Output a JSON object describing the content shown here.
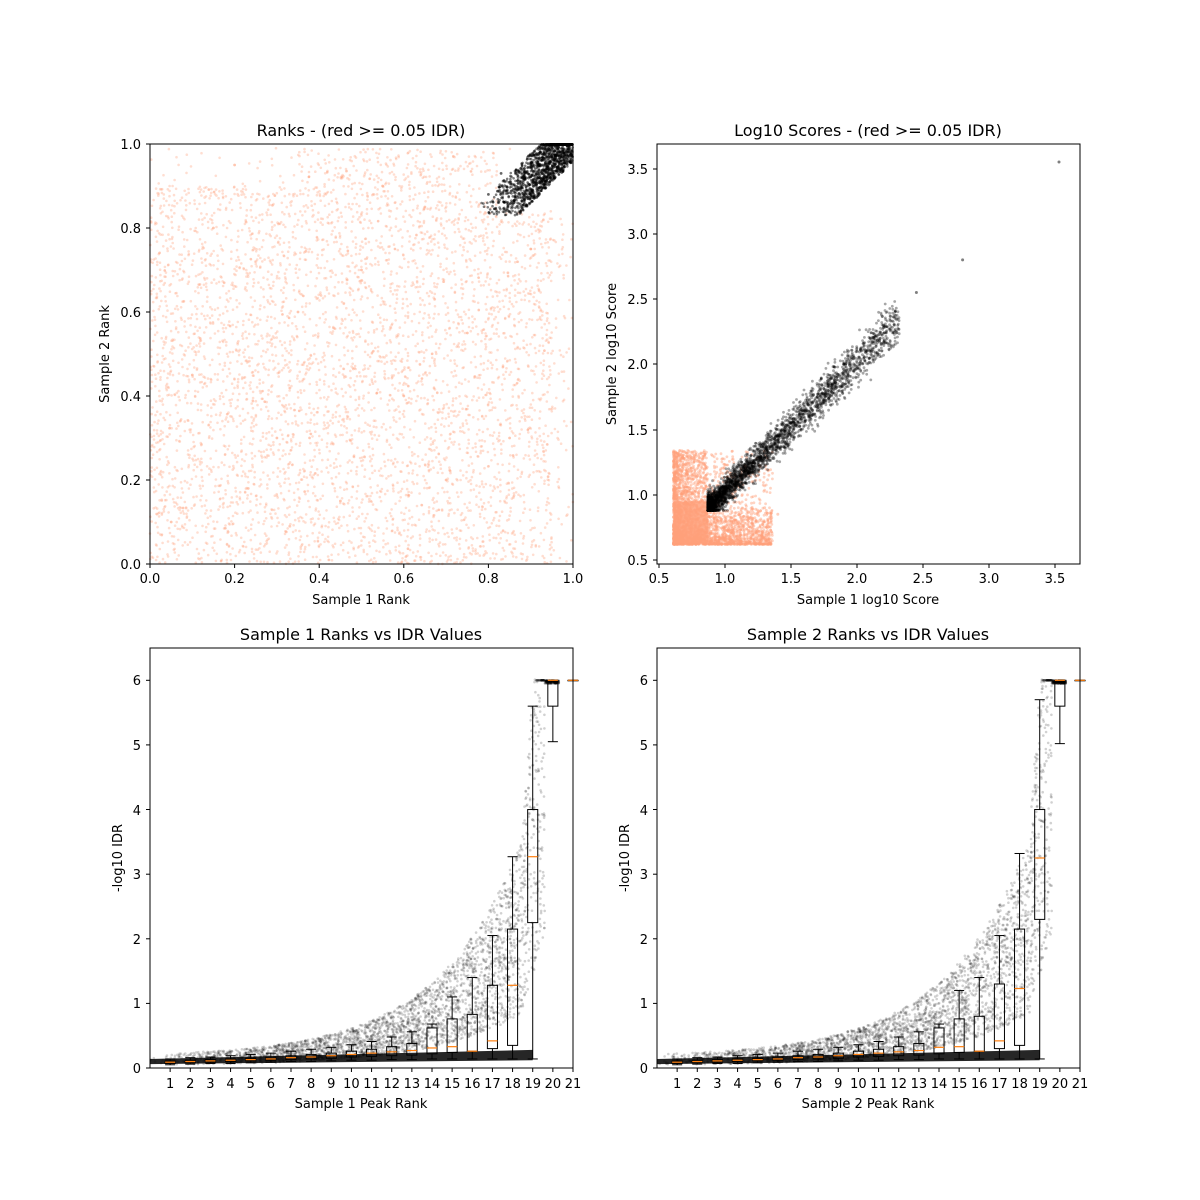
{
  "chart_data": [
    {
      "type": "scatter",
      "title": "Ranks - (red >= 0.05 IDR)",
      "xlabel": "Sample 1 Rank",
      "ylabel": "Sample 2 Rank",
      "xlim": [
        0,
        1
      ],
      "ylim": [
        0,
        1
      ],
      "xticks": [
        "0.0",
        "0.2",
        "0.4",
        "0.6",
        "0.8",
        "1.0"
      ],
      "yticks": [
        "0.0",
        "0.2",
        "0.4",
        "0.6",
        "0.8",
        "1.0"
      ],
      "grid": false,
      "colors": {
        "low_idr": "#000000",
        "high_idr": "#ffa07a"
      },
      "series": [
        {
          "color": "#ffa07a",
          "points": [
            [
              0.05,
              0.1
            ],
            [
              0.1,
              0.45
            ],
            [
              0.15,
              0.8
            ],
            [
              0.3,
              0.3
            ],
            [
              0.35,
              0.6
            ],
            [
              0.45,
              0.15
            ],
            [
              0.5,
              0.7
            ],
            [
              0.6,
              0.4
            ],
            [
              0.65,
              0.85
            ],
            [
              0.7,
              0.2
            ],
            [
              0.75,
              0.55
            ],
            [
              0.85,
              0.3
            ],
            [
              0.9,
              0.75
            ],
            [
              0.2,
              0.95
            ],
            [
              0.55,
              0.9
            ]
          ]
        },
        {
          "color": "#000000",
          "points": [
            [
              0.8,
              0.88
            ],
            [
              0.83,
              0.93
            ],
            [
              0.86,
              0.86
            ],
            [
              0.88,
              0.9
            ],
            [
              0.9,
              0.95
            ],
            [
              0.92,
              0.92
            ],
            [
              0.95,
              0.97
            ],
            [
              0.97,
              0.98
            ],
            [
              0.99,
              0.995
            ]
          ]
        }
      ]
    },
    {
      "type": "scatter",
      "title": "Log10 Scores - (red >= 0.05 IDR)",
      "xlabel": "Sample 1 log10 Score",
      "ylabel": "Sample 2 log10 Score",
      "xlim": [
        0.5,
        3.7
      ],
      "ylim": [
        0.5,
        3.7
      ],
      "xticks": [
        "0.5",
        "1.0",
        "1.5",
        "2.0",
        "2.5",
        "3.0",
        "3.5"
      ],
      "yticks": [
        "0.5",
        "1.0",
        "1.5",
        "2.0",
        "2.5",
        "3.0",
        "3.5"
      ],
      "grid": false,
      "series": [
        {
          "color": "#ffa07a",
          "points": [
            [
              0.62,
              0.63
            ],
            [
              0.65,
              0.8
            ],
            [
              0.7,
              0.95
            ],
            [
              0.75,
              1.15
            ],
            [
              0.8,
              0.7
            ],
            [
              0.9,
              0.65
            ],
            [
              1.0,
              0.68
            ],
            [
              1.1,
              0.75
            ],
            [
              1.2,
              0.85
            ],
            [
              0.68,
              1.25
            ],
            [
              1.3,
              0.9
            ],
            [
              1.4,
              0.85
            ]
          ]
        },
        {
          "color": "#000000",
          "points": [
            [
              0.88,
              0.9
            ],
            [
              1.0,
              1.0
            ],
            [
              1.1,
              1.1
            ],
            [
              1.2,
              1.2
            ],
            [
              1.3,
              1.35
            ],
            [
              1.4,
              1.45
            ],
            [
              1.5,
              1.55
            ],
            [
              1.6,
              1.65
            ],
            [
              1.7,
              1.75
            ],
            [
              1.8,
              1.85
            ],
            [
              1.9,
              2.0
            ],
            [
              2.0,
              2.1
            ],
            [
              2.1,
              2.2
            ],
            [
              2.2,
              2.3
            ],
            [
              2.45,
              2.55
            ],
            [
              2.8,
              2.8
            ],
            [
              3.53,
              3.55
            ]
          ]
        }
      ]
    },
    {
      "type": "box",
      "title": "Sample 1 Ranks vs IDR Values",
      "xlabel": "Sample 1 Peak Rank",
      "ylabel": "-log10 IDR",
      "ylim": [
        0,
        6.5
      ],
      "categories": [
        "1",
        "2",
        "3",
        "4",
        "5",
        "6",
        "7",
        "8",
        "9",
        "10",
        "11",
        "12",
        "13",
        "14",
        "15",
        "16",
        "17",
        "18",
        "19",
        "20",
        "21"
      ],
      "yticks": [
        "0",
        "1",
        "2",
        "3",
        "4",
        "5",
        "6"
      ],
      "grid": false,
      "boxes": [
        {
          "whislo": 0.05,
          "q1": 0.07,
          "med": 0.09,
          "q3": 0.11,
          "whishi": 0.14
        },
        {
          "whislo": 0.06,
          "q1": 0.08,
          "med": 0.1,
          "q3": 0.12,
          "whishi": 0.16
        },
        {
          "whislo": 0.07,
          "q1": 0.09,
          "med": 0.11,
          "q3": 0.13,
          "whishi": 0.17
        },
        {
          "whislo": 0.07,
          "q1": 0.1,
          "med": 0.12,
          "q3": 0.14,
          "whishi": 0.19
        },
        {
          "whislo": 0.08,
          "q1": 0.11,
          "med": 0.13,
          "q3": 0.15,
          "whishi": 0.21
        },
        {
          "whislo": 0.09,
          "q1": 0.12,
          "med": 0.14,
          "q3": 0.17,
          "whishi": 0.23
        },
        {
          "whislo": 0.1,
          "q1": 0.13,
          "med": 0.16,
          "q3": 0.19,
          "whishi": 0.26
        },
        {
          "whislo": 0.1,
          "q1": 0.14,
          "med": 0.17,
          "q3": 0.21,
          "whishi": 0.29
        },
        {
          "whislo": 0.11,
          "q1": 0.15,
          "med": 0.19,
          "q3": 0.23,
          "whishi": 0.32
        },
        {
          "whislo": 0.12,
          "q1": 0.17,
          "med": 0.21,
          "q3": 0.26,
          "whishi": 0.36
        },
        {
          "whislo": 0.12,
          "q1": 0.18,
          "med": 0.23,
          "q3": 0.29,
          "whishi": 0.41
        },
        {
          "whislo": 0.13,
          "q1": 0.19,
          "med": 0.25,
          "q3": 0.33,
          "whishi": 0.48
        },
        {
          "whislo": 0.13,
          "q1": 0.2,
          "med": 0.27,
          "q3": 0.38,
          "whishi": 0.56
        },
        {
          "whislo": 0.14,
          "q1": 0.22,
          "med": 0.31,
          "q3": 0.62,
          "whishi": 0.68
        },
        {
          "whislo": 0.14,
          "q1": 0.24,
          "med": 0.33,
          "q3": 0.76,
          "whishi": 1.1
        },
        {
          "whislo": 0.14,
          "q1": 0.26,
          "med": 0.26,
          "q3": 0.83,
          "whishi": 1.4
        },
        {
          "whislo": 0.14,
          "q1": 0.3,
          "med": 0.42,
          "q3": 1.28,
          "whishi": 2.05
        },
        {
          "whislo": 0.14,
          "q1": 0.35,
          "med": 1.28,
          "q3": 2.15,
          "whishi": 3.27
        },
        {
          "whislo": 0.14,
          "q1": 2.25,
          "med": 3.27,
          "q3": 4.0,
          "whishi": 5.6
        },
        {
          "whislo": 5.05,
          "q1": 5.6,
          "med": 6.0,
          "q3": 6.0,
          "whishi": 6.0
        },
        {
          "whislo": 6.0,
          "q1": 6.0,
          "med": 6.0,
          "q3": 6.0,
          "whishi": 6.0
        }
      ]
    },
    {
      "type": "box",
      "title": "Sample 2 Ranks vs IDR Values",
      "xlabel": "Sample 2 Peak Rank",
      "ylabel": "-log10 IDR",
      "ylim": [
        0,
        6.5
      ],
      "categories": [
        "1",
        "2",
        "3",
        "4",
        "5",
        "6",
        "7",
        "8",
        "9",
        "10",
        "11",
        "12",
        "13",
        "14",
        "15",
        "16",
        "17",
        "18",
        "19",
        "20",
        "21"
      ],
      "yticks": [
        "0",
        "1",
        "2",
        "3",
        "4",
        "5",
        "6"
      ],
      "grid": false,
      "boxes": [
        {
          "whislo": 0.05,
          "q1": 0.07,
          "med": 0.09,
          "q3": 0.11,
          "whishi": 0.14
        },
        {
          "whislo": 0.06,
          "q1": 0.08,
          "med": 0.1,
          "q3": 0.12,
          "whishi": 0.16
        },
        {
          "whislo": 0.07,
          "q1": 0.09,
          "med": 0.11,
          "q3": 0.13,
          "whishi": 0.17
        },
        {
          "whislo": 0.07,
          "q1": 0.1,
          "med": 0.12,
          "q3": 0.14,
          "whishi": 0.19
        },
        {
          "whislo": 0.08,
          "q1": 0.11,
          "med": 0.13,
          "q3": 0.15,
          "whishi": 0.21
        },
        {
          "whislo": 0.09,
          "q1": 0.12,
          "med": 0.14,
          "q3": 0.17,
          "whishi": 0.23
        },
        {
          "whislo": 0.1,
          "q1": 0.13,
          "med": 0.16,
          "q3": 0.19,
          "whishi": 0.26
        },
        {
          "whislo": 0.1,
          "q1": 0.14,
          "med": 0.17,
          "q3": 0.21,
          "whishi": 0.29
        },
        {
          "whislo": 0.11,
          "q1": 0.15,
          "med": 0.19,
          "q3": 0.23,
          "whishi": 0.32
        },
        {
          "whislo": 0.12,
          "q1": 0.17,
          "med": 0.21,
          "q3": 0.26,
          "whishi": 0.36
        },
        {
          "whislo": 0.12,
          "q1": 0.18,
          "med": 0.23,
          "q3": 0.29,
          "whishi": 0.41
        },
        {
          "whislo": 0.13,
          "q1": 0.19,
          "med": 0.25,
          "q3": 0.33,
          "whishi": 0.48
        },
        {
          "whislo": 0.13,
          "q1": 0.2,
          "med": 0.27,
          "q3": 0.38,
          "whishi": 0.56
        },
        {
          "whislo": 0.14,
          "q1": 0.22,
          "med": 0.32,
          "q3": 0.62,
          "whishi": 0.68
        },
        {
          "whislo": 0.14,
          "q1": 0.24,
          "med": 0.33,
          "q3": 0.76,
          "whishi": 1.2
        },
        {
          "whislo": 0.14,
          "q1": 0.26,
          "med": 0.26,
          "q3": 0.8,
          "whishi": 1.4
        },
        {
          "whislo": 0.14,
          "q1": 0.3,
          "med": 0.42,
          "q3": 1.3,
          "whishi": 2.05
        },
        {
          "whislo": 0.14,
          "q1": 0.35,
          "med": 1.23,
          "q3": 2.15,
          "whishi": 3.32
        },
        {
          "whislo": 0.14,
          "q1": 2.3,
          "med": 3.25,
          "q3": 4.0,
          "whishi": 5.7
        },
        {
          "whislo": 5.02,
          "q1": 5.6,
          "med": 6.0,
          "q3": 6.0,
          "whishi": 6.0
        },
        {
          "whislo": 6.0,
          "q1": 6.0,
          "med": 6.0,
          "q3": 6.0,
          "whishi": 6.0
        }
      ]
    }
  ]
}
